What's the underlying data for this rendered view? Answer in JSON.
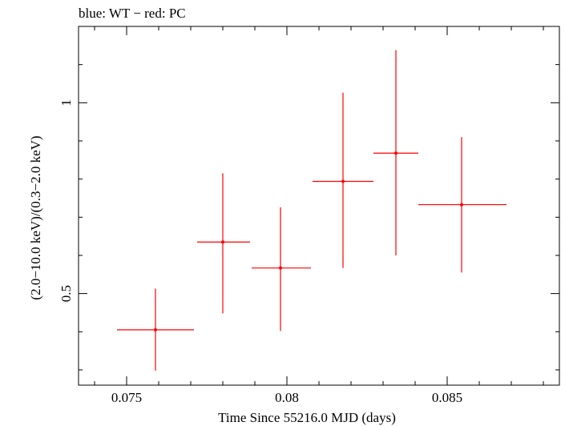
{
  "chart_data": {
    "type": "scatter",
    "title": "blue: WT − red: PC",
    "xlabel": "Time Since 55216.0 MJD (days)",
    "ylabel": "(2.0−10.0 keV)/(0.3−2.0 keV)",
    "xlim": [
      0.0735,
      0.0885
    ],
    "ylim": [
      0.26,
      1.2
    ],
    "x_major_ticks": [
      0.075,
      0.08,
      0.085
    ],
    "x_tick_labels": [
      "0.075",
      "0.08",
      "0.085"
    ],
    "y_major_ticks": [
      0.5,
      1.0
    ],
    "y_tick_labels": [
      "0.5",
      "1"
    ],
    "grid": false,
    "series": [
      {
        "name": "PC",
        "color": "#ff0000",
        "points": [
          {
            "x": 0.0759,
            "xlo": 0.0747,
            "xhi": 0.0771,
            "y": 0.405,
            "ylo": 0.298,
            "yhi": 0.513
          },
          {
            "x": 0.078,
            "xlo": 0.0772,
            "xhi": 0.07885,
            "y": 0.635,
            "ylo": 0.448,
            "yhi": 0.815
          },
          {
            "x": 0.0798,
            "xlo": 0.0789,
            "xhi": 0.08075,
            "y": 0.567,
            "ylo": 0.402,
            "yhi": 0.726
          },
          {
            "x": 0.08175,
            "xlo": 0.0808,
            "xhi": 0.0827,
            "y": 0.794,
            "ylo": 0.567,
            "yhi": 1.026
          },
          {
            "x": 0.0834,
            "xlo": 0.0827,
            "xhi": 0.0841,
            "y": 0.868,
            "ylo": 0.6,
            "yhi": 1.138
          },
          {
            "x": 0.08545,
            "xlo": 0.0841,
            "xhi": 0.08685,
            "y": 0.733,
            "ylo": 0.555,
            "yhi": 0.91
          }
        ]
      }
    ]
  }
}
